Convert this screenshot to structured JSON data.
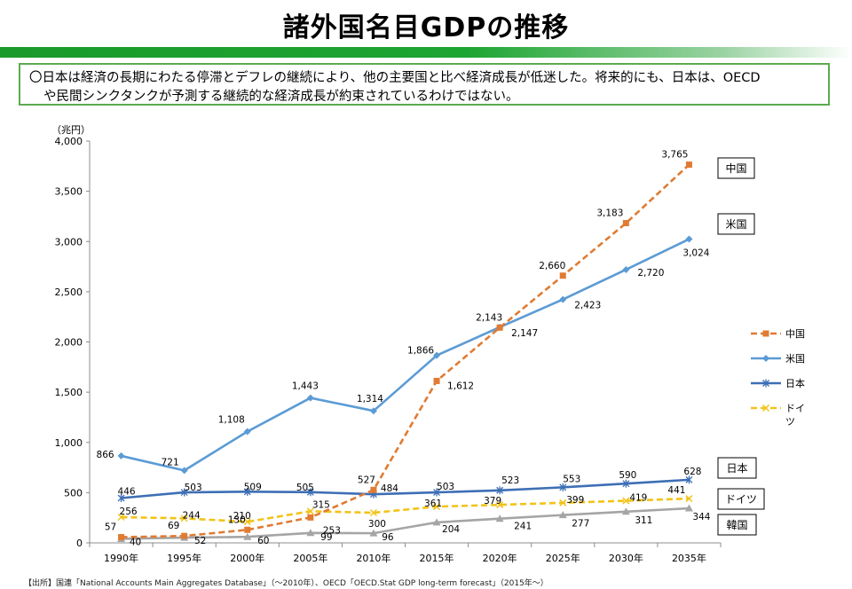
{
  "page": {
    "title": "諸外国名目GDPの推移",
    "summary_line1": "〇日本は経済の長期にわたる停滞とデフレの継続により、他の主要国と比べ経済成長が低迷した。将来的にも、日本は、OECD",
    "summary_line2": "や民間シンクタンクが予測する継続的な経済成長が約束されているわけではない。",
    "source": "【出所】国連「National Accounts Main Aggregates Database」（〜2010年）、OECD「OECD.Stat GDP long-term forecast」（2015年〜）"
  },
  "chart_data": {
    "type": "line",
    "title": "諸外国名目GDPの推移",
    "ylabel": "（兆円）",
    "xlabel": "",
    "ylim": [
      0,
      4000
    ],
    "yticks": [
      0,
      500,
      1000,
      1500,
      2000,
      2500,
      3000,
      3500,
      4000
    ],
    "grid": false,
    "categories": [
      "1990年",
      "1995年",
      "2000年",
      "2005年",
      "2010年",
      "2015年",
      "2020年",
      "2025年",
      "2030年",
      "2035年"
    ],
    "series": [
      {
        "name": "中国",
        "values": [
          57,
          69,
          130,
          253,
          527,
          1612,
          2143,
          2660,
          3183,
          3765
        ],
        "color": "#E07B33",
        "dash": true,
        "marker": "square",
        "callout": "中国"
      },
      {
        "name": "米国",
        "values": [
          866,
          721,
          1108,
          1443,
          1314,
          1866,
          2147,
          2423,
          2720,
          3024
        ],
        "color": "#5B9BD5",
        "dash": false,
        "marker": "diamond",
        "callout": "米国"
      },
      {
        "name": "日本",
        "values": [
          446,
          503,
          509,
          505,
          484,
          503,
          523,
          553,
          590,
          628
        ],
        "color": "#3D6FB5",
        "dash": false,
        "marker": "star",
        "callout": "日本"
      },
      {
        "name": "ドイツ",
        "values": [
          256,
          244,
          210,
          315,
          300,
          361,
          379,
          399,
          419,
          441
        ],
        "color": "#F2C318",
        "dash": true,
        "marker": "x",
        "callout": "ドイツ"
      },
      {
        "name": "韓国",
        "values": [
          40,
          52,
          60,
          99,
          96,
          204,
          241,
          277,
          311,
          344
        ],
        "color": "#A5A5A5",
        "dash": false,
        "marker": "triangle",
        "callout": "韓国",
        "in_legend": false
      }
    ],
    "legend": {
      "placement": "right",
      "entries": [
        "中国",
        "米国",
        "日本",
        "ドイ\nツ"
      ]
    },
    "callout_boxes": [
      "中国",
      "米国",
      "日本",
      "ドイツ",
      "韓国"
    ]
  }
}
